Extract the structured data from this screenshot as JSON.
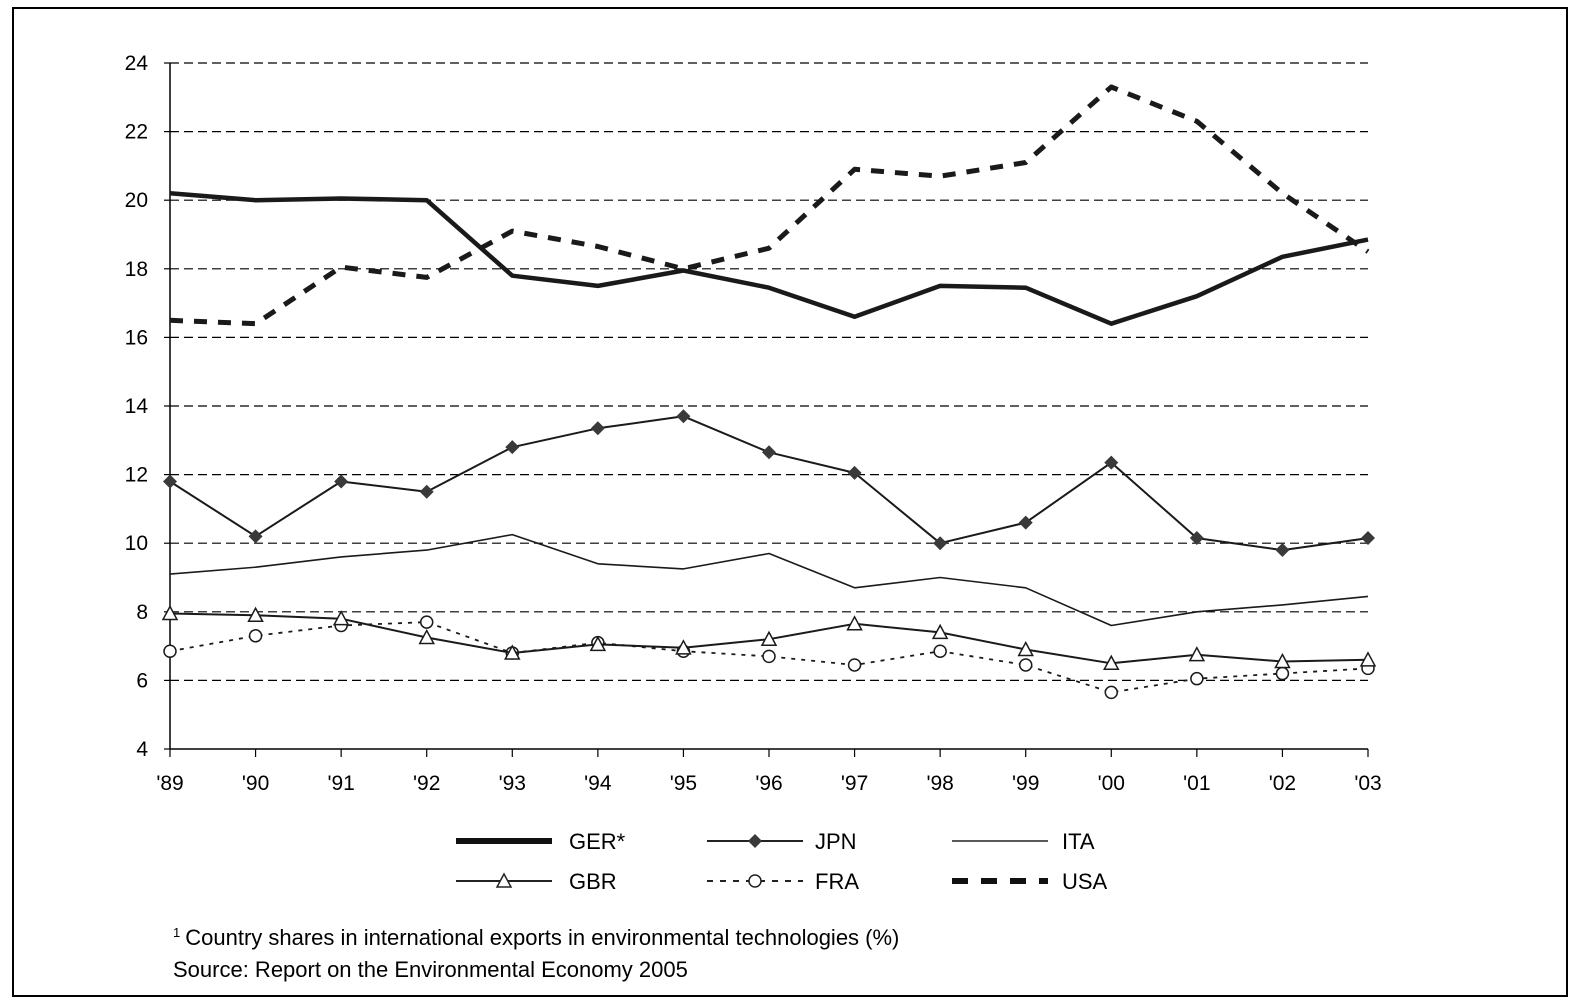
{
  "chart_data": {
    "type": "line",
    "categories": [
      "'89",
      "'90",
      "'91",
      "'92",
      "'93",
      "'94",
      "'95",
      "'96",
      "'97",
      "'98",
      "'99",
      "'00",
      "'01",
      "'02",
      "'03"
    ],
    "ylim": [
      4,
      24
    ],
    "yticks": [
      4,
      6,
      8,
      10,
      12,
      14,
      16,
      18,
      20,
      22,
      24
    ],
    "yticks_labels": [
      "4",
      "6",
      "8",
      "10",
      "12",
      "14",
      "16",
      "18",
      "20",
      "22",
      "24"
    ],
    "grid": "horizontal dashed",
    "legend_position": "bottom",
    "series": [
      {
        "name": "GER*",
        "style": "thick-solid",
        "values": [
          20.2,
          20.0,
          20.05,
          20.0,
          17.8,
          17.5,
          17.95,
          17.45,
          16.6,
          17.5,
          17.45,
          16.4,
          17.2,
          18.35,
          18.85
        ]
      },
      {
        "name": "JPN",
        "style": "solid-diamond",
        "values": [
          11.8,
          10.2,
          11.8,
          11.5,
          12.8,
          13.35,
          13.7,
          12.65,
          12.05,
          10.0,
          10.6,
          12.35,
          10.15,
          9.8,
          10.15
        ]
      },
      {
        "name": "ITA",
        "style": "thin-solid",
        "values": [
          9.1,
          9.3,
          9.6,
          9.8,
          10.25,
          9.4,
          9.25,
          9.7,
          8.7,
          9.0,
          8.7,
          7.6,
          8.0,
          8.2,
          8.45
        ]
      },
      {
        "name": "GBR",
        "style": "solid-triangle",
        "values": [
          7.95,
          7.9,
          7.8,
          7.25,
          6.8,
          7.05,
          6.95,
          7.2,
          7.65,
          7.4,
          6.9,
          6.5,
          6.75,
          6.55,
          6.6
        ]
      },
      {
        "name": "FRA",
        "style": "dotted-circle",
        "values": [
          6.85,
          7.3,
          7.6,
          7.7,
          6.8,
          7.1,
          6.85,
          6.7,
          6.45,
          6.85,
          6.45,
          5.65,
          6.05,
          6.2,
          6.35
        ]
      },
      {
        "name": "USA",
        "style": "thick-dashed",
        "values": [
          16.5,
          16.4,
          18.05,
          17.75,
          19.1,
          18.65,
          18.0,
          18.6,
          20.9,
          20.7,
          21.1,
          23.3,
          22.3,
          20.2,
          18.5
        ]
      }
    ]
  },
  "legend": {
    "ger": "GER*",
    "jpn": "JPN",
    "ita": "ITA",
    "gbr": "GBR",
    "fra": "FRA",
    "usa": "USA"
  },
  "footnotes": {
    "marker": "1",
    "line1": "Country shares in international exports in environmental technologies (%)",
    "line2": "Source: Report on the Environmental Economy 2005"
  },
  "colors": {
    "lines": "#1a1a1a",
    "grid": "#000000",
    "marker_fill": "#3a3a3a"
  }
}
